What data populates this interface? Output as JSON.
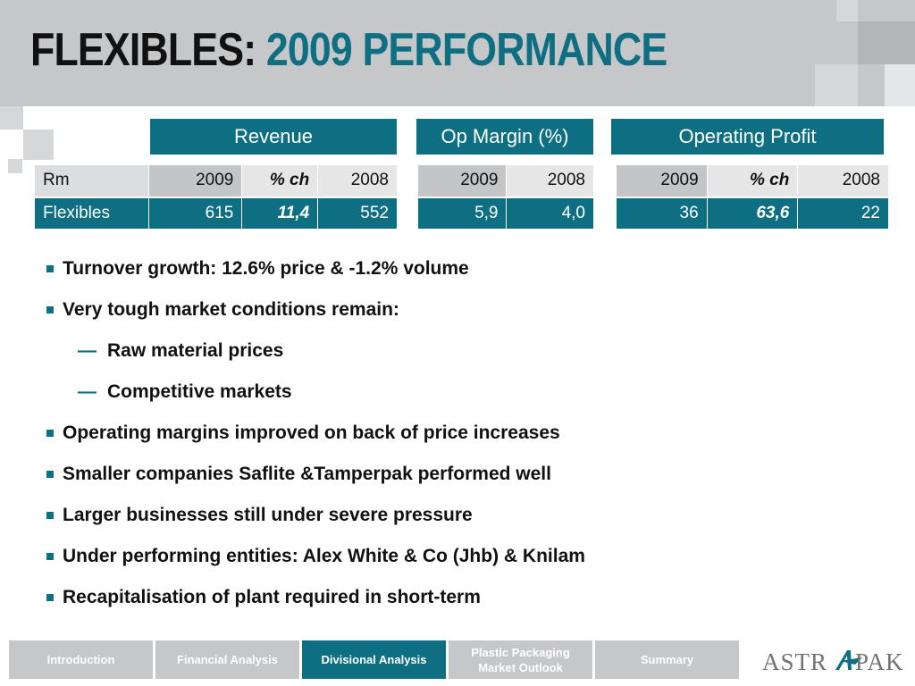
{
  "title": {
    "prefix": "FLEXIBLES:",
    "main": "2009 PERFORMANCE"
  },
  "sections": {
    "revenue": "Revenue",
    "op_margin": "Op Margin (%)",
    "op_profit": "Operating Profit"
  },
  "table": {
    "header": {
      "label": "Rm",
      "revenue": [
        "2009",
        "% ch",
        "2008"
      ],
      "op_margin": [
        "2009",
        "2008"
      ],
      "op_profit": [
        "2009",
        "% ch",
        "2008"
      ]
    },
    "row": {
      "label": "Flexibles",
      "revenue": [
        "615",
        "11,4",
        "552"
      ],
      "op_margin": [
        "5,9",
        "4,0"
      ],
      "op_profit": [
        "36",
        "63,6",
        "22"
      ]
    }
  },
  "bullets": [
    "Turnover growth: 12.6% price & -1.2% volume",
    "Very tough market conditions remain:",
    "Raw material prices",
    "Competitive markets",
    "Operating margins improved on back of price increases",
    "Smaller companies Saflite &Tamperpak performed well",
    "Larger businesses still under severe pressure",
    "Under performing entities: Alex White & Co (Jhb) & Knilam",
    "Recapitalisation of plant required in short-term"
  ],
  "nav": {
    "items": [
      "Introduction",
      "Financial Analysis",
      "Divisional Analysis",
      "Plastic Packaging Market Outlook",
      "Summary"
    ],
    "active": "Divisional Analysis"
  },
  "logo": {
    "left": "ASTR",
    "right": "PAK"
  },
  "colors": {
    "accent": "#0e6f83",
    "header_gray": "#c6c7c9",
    "nav_gray": "#c6c7c9"
  }
}
